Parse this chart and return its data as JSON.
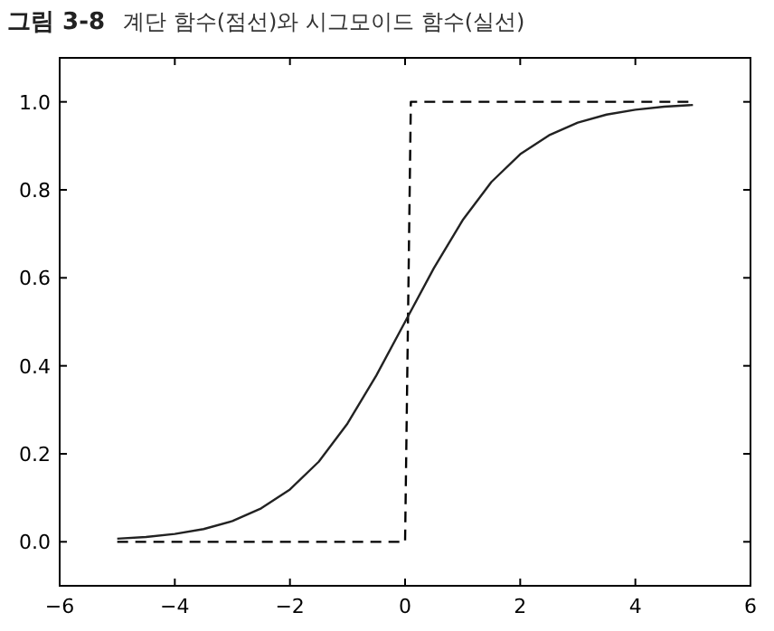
{
  "chart_data": {
    "type": "line",
    "title": "그림 3-8",
    "subtitle": "계단 함수(점선)와 시그모이드 함수(실선)",
    "series": [
      {
        "color": "#000000",
        "line_style": "dashed",
        "x": [
          -5,
          0,
          0.1,
          5
        ],
        "values": [
          0,
          0,
          1,
          1
        ]
      },
      {
        "color": "#222222",
        "line_style": "solid",
        "x": [
          -5,
          -4.5,
          -4,
          -3.5,
          -3,
          -2.5,
          -2,
          -1.5,
          -1,
          -0.5,
          0,
          0.5,
          1,
          1.5,
          2,
          2.5,
          3,
          3.5,
          4,
          4.5,
          5
        ],
        "values": [
          0.007,
          0.011,
          0.018,
          0.029,
          0.047,
          0.076,
          0.119,
          0.182,
          0.269,
          0.378,
          0.5,
          0.622,
          0.731,
          0.818,
          0.881,
          0.924,
          0.953,
          0.971,
          0.982,
          0.989,
          0.993
        ]
      }
    ],
    "xlim": [
      -6,
      6
    ],
    "ylim": [
      -0.1,
      1.1
    ],
    "xticks": [
      {
        "value": -6,
        "label": "−6"
      },
      {
        "value": -4,
        "label": "−4"
      },
      {
        "value": -2,
        "label": "−2"
      },
      0,
      2,
      4,
      6
    ],
    "yticks": [
      {
        "value": 0,
        "label": "0.0"
      },
      {
        "value": 0.2,
        "label": "0.2"
      },
      {
        "value": 0.4,
        "label": "0.4"
      },
      {
        "value": 0.6,
        "label": "0.6"
      },
      {
        "value": 0.8,
        "label": "0.8"
      },
      {
        "value": 1,
        "label": "1.0"
      }
    ],
    "grid": false
  }
}
